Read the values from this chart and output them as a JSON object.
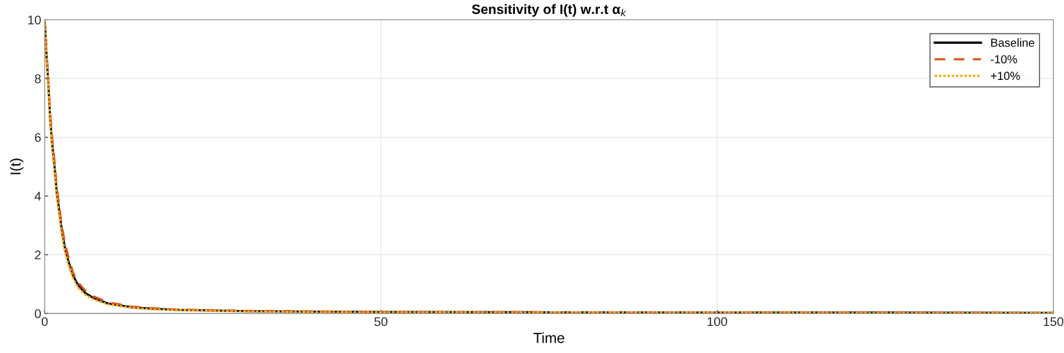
{
  "chart_data": {
    "type": "line",
    "title": "Sensitivity of I(t) w.r.t α$_{k}$",
    "xlabel": "Time",
    "ylabel": "I(t)",
    "xlim": [
      0,
      150
    ],
    "xticks": [
      0,
      50,
      100,
      150
    ],
    "ylim": [
      0,
      10
    ],
    "yticks": [
      0,
      2,
      4,
      6,
      8,
      10
    ],
    "grid": true,
    "legend": "top right",
    "series": [
      {
        "name": "Baseline",
        "color": "#000000",
        "line_style": "solid",
        "x": [
          0,
          0.3,
          0.5,
          0.8,
          1.1,
          1.5,
          1.8,
          2.2,
          2.5,
          3,
          3.5,
          4.2,
          5,
          6,
          7.3,
          9.4,
          13,
          16,
          20,
          30,
          40,
          50,
          75,
          100,
          125,
          150
        ],
        "values": [
          10,
          8.7,
          8,
          6.7,
          5.8,
          4.9,
          4.1,
          3.45,
          2.9,
          2.25,
          1.8,
          1.3,
          0.95,
          0.7,
          0.52,
          0.34,
          0.21,
          0.16,
          0.12,
          0.08,
          0.06,
          0.05,
          0.04,
          0.03,
          0.03,
          0.02
        ]
      },
      {
        "name": "-10%",
        "color": "#d95319",
        "line_style": "dashed",
        "x": [
          0,
          0.3,
          0.5,
          0.8,
          1.1,
          1.5,
          1.8,
          2.2,
          2.5,
          3,
          3.5,
          4.2,
          5,
          6,
          7.3,
          9.4,
          13,
          16,
          20,
          30,
          40,
          50,
          75,
          100,
          125,
          150
        ],
        "values": [
          10,
          8.8,
          8.1,
          6.9,
          6,
          5.1,
          4.3,
          3.6,
          3.05,
          2.4,
          1.95,
          1.4,
          1.05,
          0.78,
          0.58,
          0.38,
          0.23,
          0.18,
          0.13,
          0.09,
          0.07,
          0.05,
          0.04,
          0.03,
          0.03,
          0.02
        ]
      },
      {
        "name": "+10%",
        "color": "#edb120",
        "line_style": "dotted",
        "x": [
          0,
          0.3,
          0.5,
          0.8,
          1.1,
          1.5,
          1.8,
          2.2,
          2.5,
          3,
          3.5,
          4.2,
          5,
          6,
          7.3,
          9.4,
          13,
          16,
          20,
          30,
          40,
          50,
          75,
          100,
          125,
          150
        ],
        "values": [
          10,
          8.6,
          7.9,
          6.6,
          5.65,
          4.75,
          3.95,
          3.3,
          2.75,
          2.1,
          1.68,
          1.2,
          0.87,
          0.64,
          0.47,
          0.31,
          0.19,
          0.14,
          0.11,
          0.07,
          0.05,
          0.04,
          0.03,
          0.03,
          0.02,
          0.02
        ]
      }
    ]
  }
}
